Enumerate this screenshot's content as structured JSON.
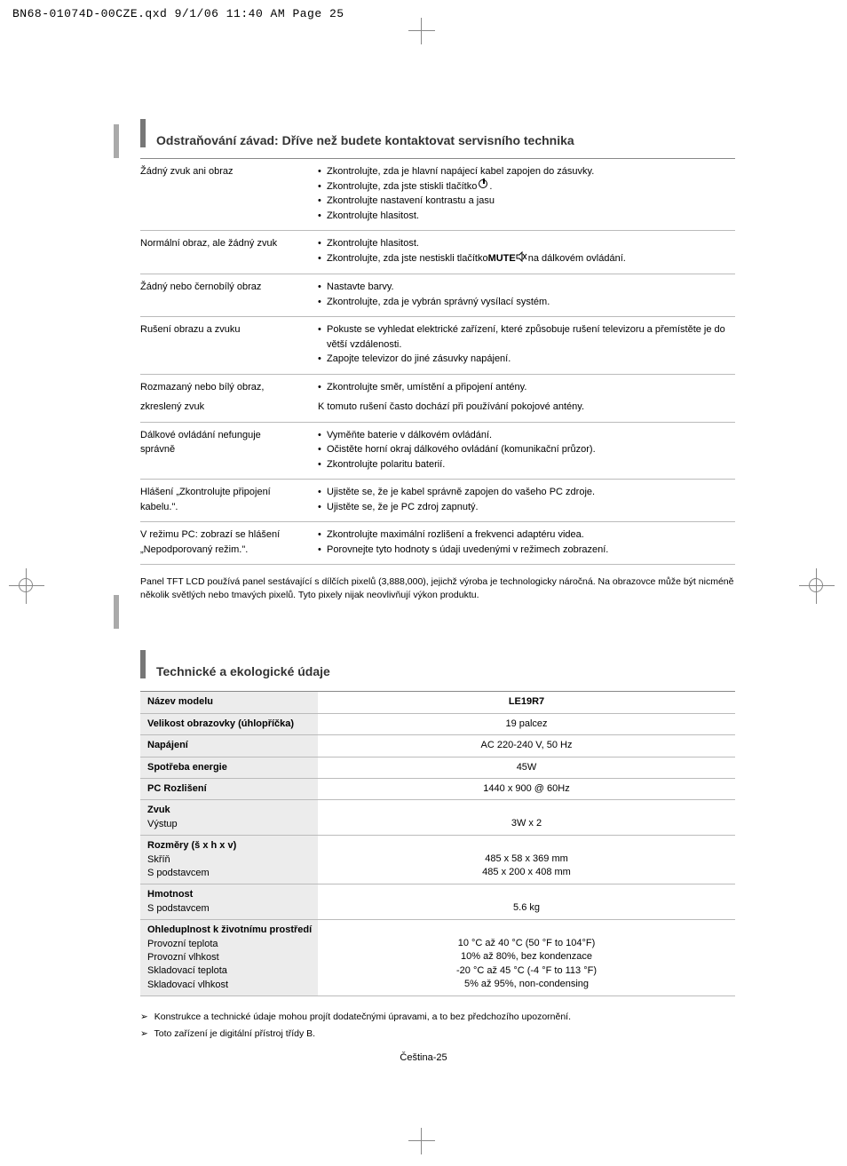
{
  "stamp": "BN68-01074D-00CZE.qxd  9/1/06  11:40 AM  Page 25",
  "section1_title": "Odstraňování závad: Dříve než budete kontaktovat servisního technika",
  "troubleshoot": [
    {
      "problem": "Žádný zvuk ani obraz",
      "solutions": [
        "Zkontrolujte, zda je hlavní napájecí kabel zapojen do zásuvky.",
        "Zkontrolujte, zda jste stiskli tlačítko",
        "Zkontrolujte nastavení kontrastu a jasu",
        "Zkontrolujte hlasitost."
      ],
      "iconAfter": [
        null,
        "power",
        null,
        null
      ]
    },
    {
      "problem": "Normální obraz, ale žádný zvuk",
      "solutions": [
        "Zkontrolujte hlasitost.",
        "Zkontrolujte, zda jste nestiskli tlačítko"
      ],
      "iconAfter": [
        null,
        "mute"
      ],
      "suffix": [
        null,
        " na dálkovém ovládání."
      ]
    },
    {
      "problem": "Žádný nebo černobílý obraz",
      "solutions": [
        "Nastavte barvy.",
        "Zkontrolujte, zda je vybrán správný vysílací systém."
      ]
    },
    {
      "problem": "Rušení obrazu a zvuku",
      "solutions": [
        "Pokuste se vyhledat elektrické zařízení, které způsobuje rušení televizoru a přemístěte je do větší vzdálenosti.",
        "Zapojte televizor do jiné zásuvky napájení."
      ]
    },
    {
      "problem_lines": [
        "Rozmazaný nebo bílý obraz,",
        "zkreslený zvuk"
      ],
      "solutions": [
        "Zkontrolujte směr, umístění a připojení antény."
      ],
      "plain_after": [
        "K tomuto rušení často dochází při používání pokojové antény."
      ]
    },
    {
      "problem_lines": [
        "Dálkové ovládání nefunguje",
        "správně"
      ],
      "solutions": [
        "Vyměňte baterie v dálkovém ovládání.",
        "Očistěte horní okraj dálkového ovládání (komunikační průzor).",
        "Zkontrolujte polaritu baterií."
      ]
    },
    {
      "problem_lines": [
        "Hlášení „Zkontrolujte připojení",
        "kabelu.\"."
      ],
      "solutions": [
        "Ujistěte se, že je kabel správně zapojen do vašeho PC zdroje.",
        "Ujistěte se, že je PC zdroj zapnutý."
      ]
    },
    {
      "problem_lines": [
        "V režimu PC: zobrazí se hlášení",
        "„Nepodporovaný  režim.\"."
      ],
      "solutions": [
        "Zkontrolujte maximální rozlišení a frekvenci adaptéru videa.",
        "Porovnejte tyto hodnoty s údaji uvedenými v režimech zobrazení."
      ]
    }
  ],
  "panel_note": "Panel TFT LCD používá panel sestávající s dílčích pixelů (3,888,000), jejichž výroba je technologicky náročná. Na obrazovce může být nicméně několik světlých nebo tmavých pixelů. Tyto pixely nijak neovlivňují výkon produktu.",
  "section2_title": "Technické a ekologické údaje",
  "mute_bold": "MUTE",
  "specs": [
    {
      "label": "Název modelu",
      "value": "LE19R7",
      "header": true
    },
    {
      "label": "Velikost obrazovky (úhlopříčka)",
      "value": "19 palcez"
    },
    {
      "label": "Napájení",
      "value": "AC 220-240 V, 50 Hz"
    },
    {
      "label": "Spotřeba energie",
      "value": "45W"
    },
    {
      "label": "PC Rozlišení",
      "value": "1440 x 900 @ 60Hz"
    },
    {
      "label": "Zvuk",
      "sub": [
        "Výstup"
      ],
      "values": [
        "3W x 2"
      ],
      "pad": true
    },
    {
      "label": "Rozměry (š x h x v)",
      "sub": [
        "Skříň",
        "S podstavcem"
      ],
      "values": [
        "485 x 58 x 369 mm",
        "485 x 200 x 408 mm"
      ],
      "pad": true
    },
    {
      "label": "Hmotnost",
      "sub": [
        "S podstavcem"
      ],
      "values": [
        "5.6 kg"
      ],
      "pad": true
    },
    {
      "label": "Ohleduplnost k životnímu prostředí",
      "sub": [
        "Provozní teplota",
        "Provozní vlhkost",
        "Skladovací teplota",
        "Skladovací vlhkost"
      ],
      "values": [
        "10 °C až 40 °C (50 °F to 104°F)",
        "10% až 80%, bez kondenzace",
        "-20 °C až 45 °C (-4 °F to 113 °F)",
        "5% až 95%, non-condensing"
      ],
      "pad": true
    }
  ],
  "notes": [
    "Konstrukce a technické údaje mohou projít dodatečnými úpravami, a to bez předchozího upozornění.",
    "Toto zařízení je digitální přístroj třídy B."
  ],
  "footer": "Čeština-25"
}
